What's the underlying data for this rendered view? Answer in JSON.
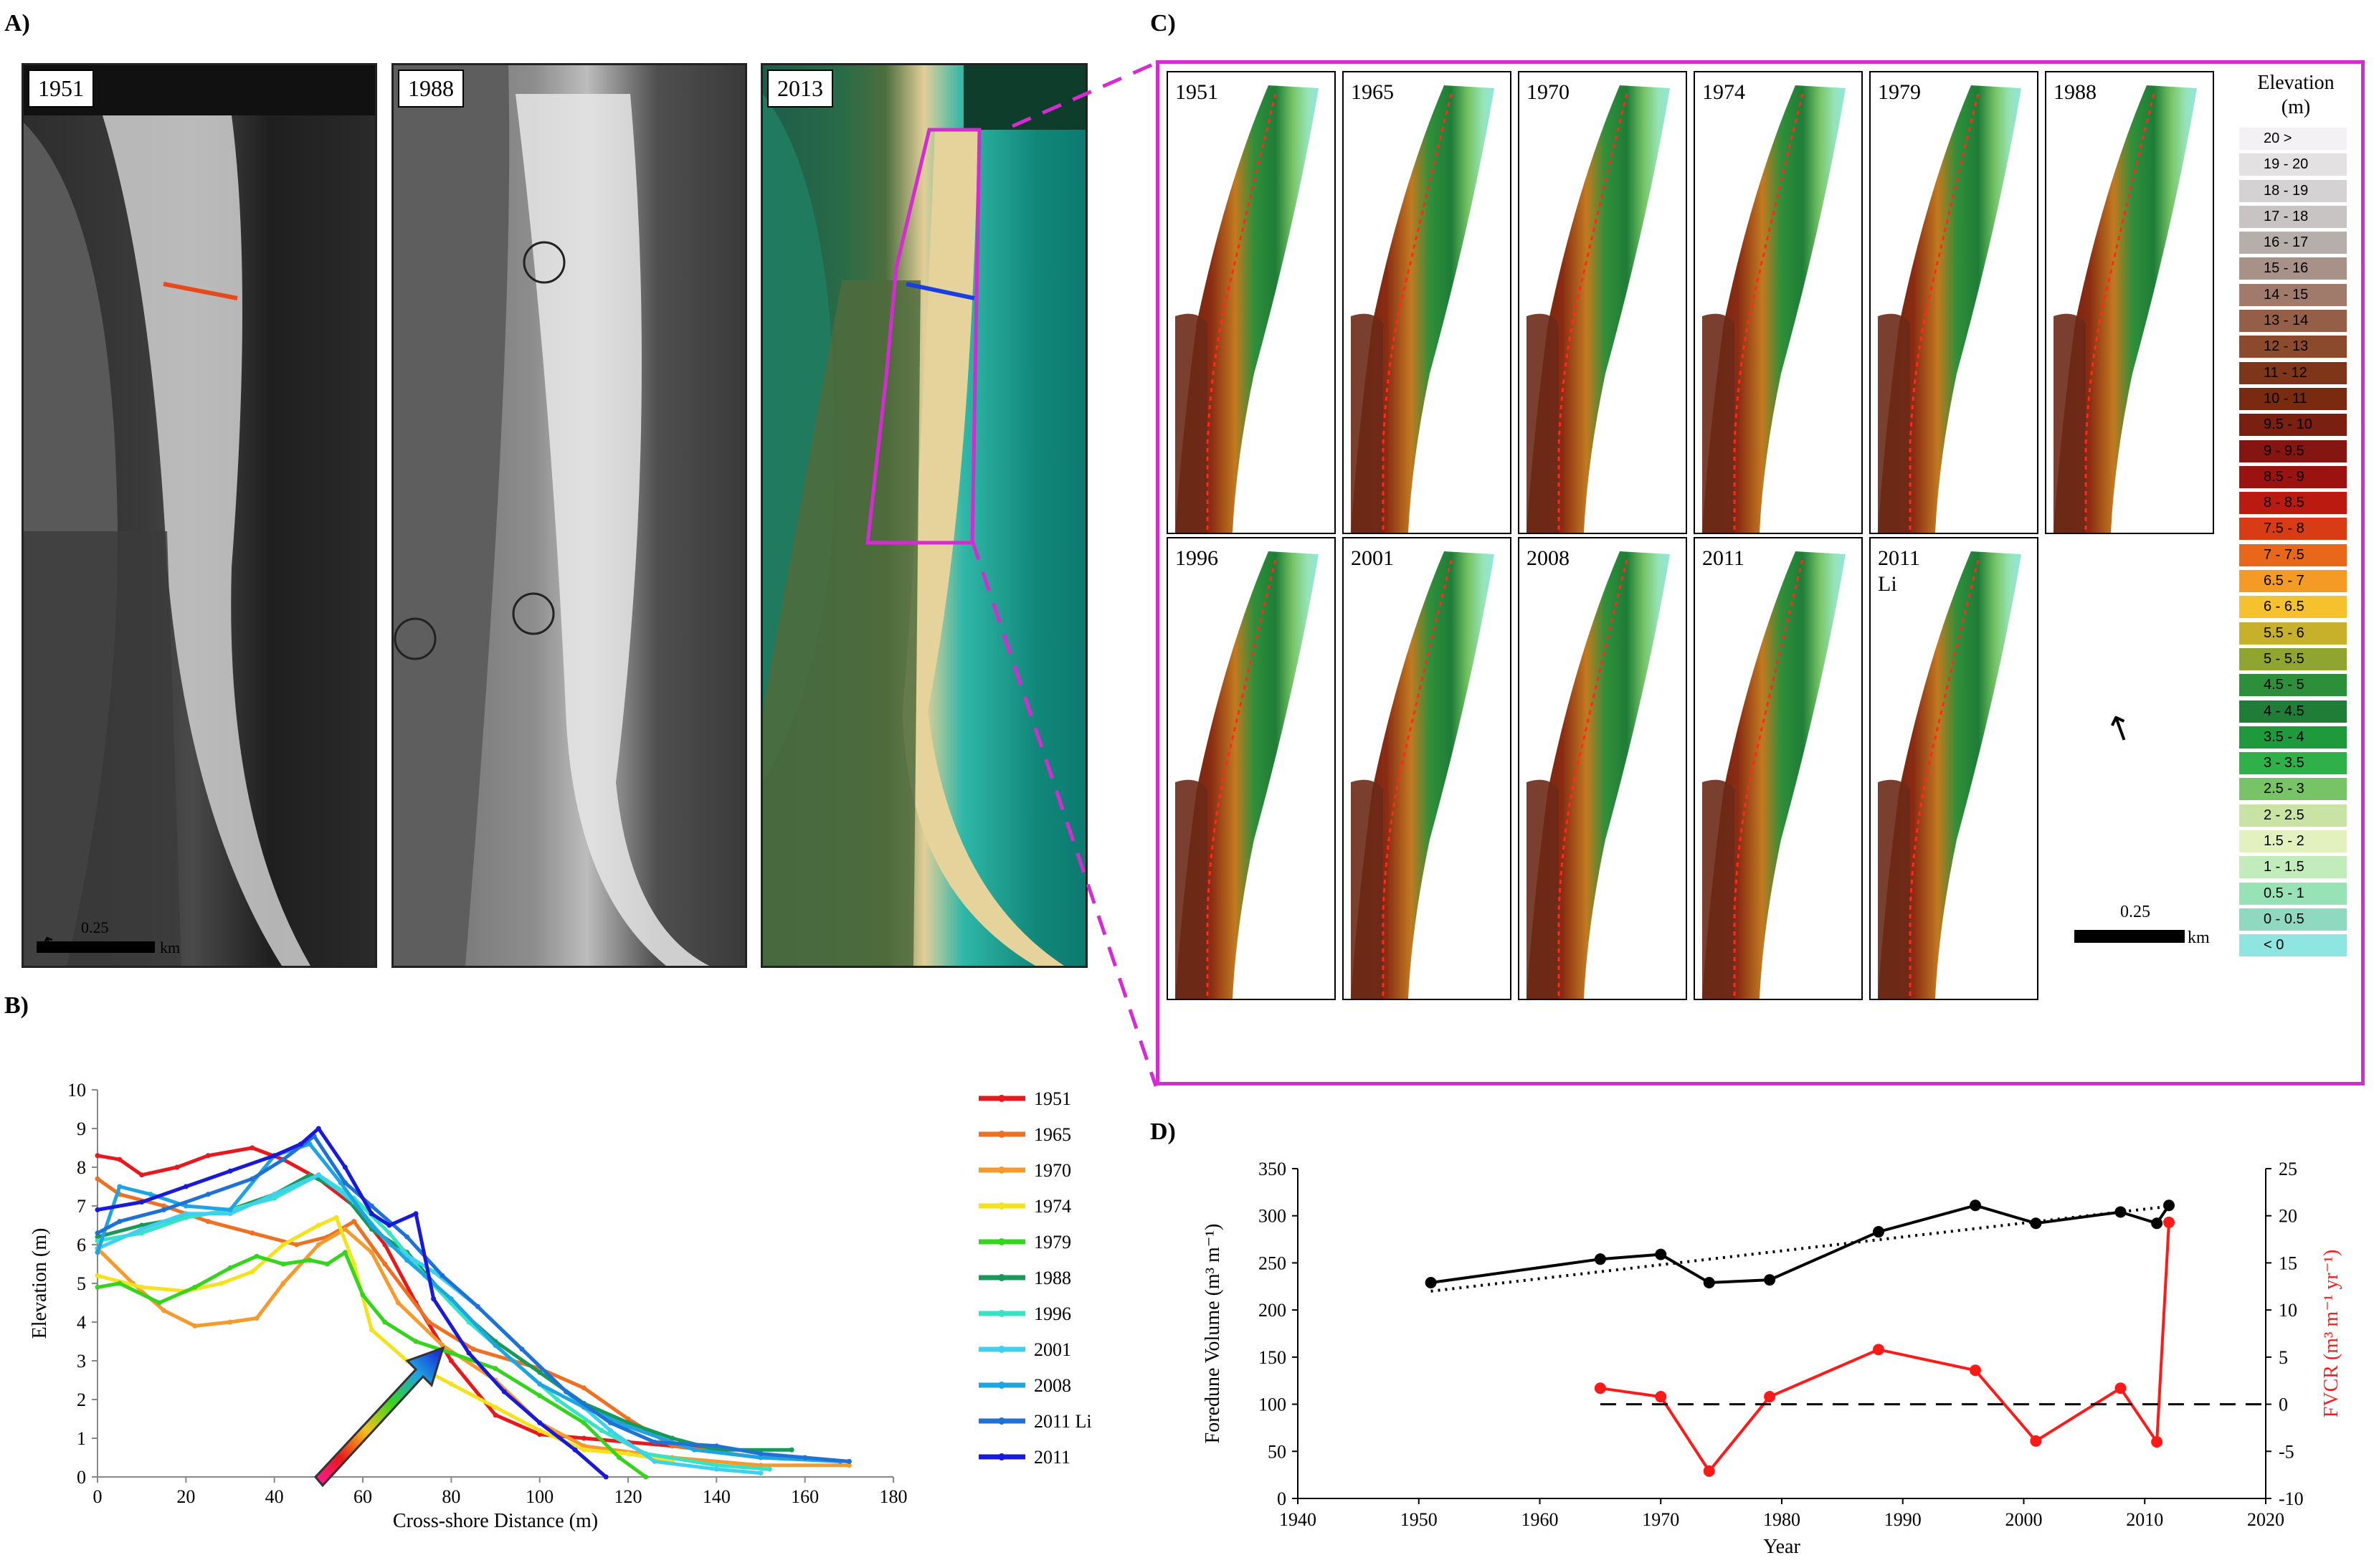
{
  "panels": {
    "a": "A)",
    "b": "B)",
    "c": "C)",
    "d": "D)"
  },
  "panel_a": {
    "photos": [
      {
        "year": "1951",
        "style": "bw"
      },
      {
        "year": "1988",
        "style": "bw2"
      },
      {
        "year": "2013",
        "style": "color"
      }
    ],
    "scale_value": "0.25",
    "scale_unit": "km"
  },
  "panel_c": {
    "frames": [
      "1951",
      "1965",
      "1970",
      "1974",
      "1979",
      "1988",
      "1996",
      "2001",
      "2008",
      "2011",
      "2011\nLi"
    ],
    "legend_title": "Elevation\n(m)",
    "legend": [
      {
        "label": "20 >",
        "color": "#f3f1f3"
      },
      {
        "label": "19 - 20",
        "color": "#e3e1e2"
      },
      {
        "label": "18 - 19",
        "color": "#d4d2d2"
      },
      {
        "label": "17 - 18",
        "color": "#c7c4c3"
      },
      {
        "label": "16 - 17",
        "color": "#b5aeab"
      },
      {
        "label": "15 - 16",
        "color": "#a89188"
      },
      {
        "label": "14 - 15",
        "color": "#a07b6c"
      },
      {
        "label": "13 - 14",
        "color": "#955f47"
      },
      {
        "label": "12 - 13",
        "color": "#8c4a2c"
      },
      {
        "label": "11 - 12",
        "color": "#7e3518"
      },
      {
        "label": "10 - 11",
        "color": "#7a2a0f"
      },
      {
        "label": "9.5 - 10",
        "color": "#7b1f10"
      },
      {
        "label": "9 - 9.5",
        "color": "#851510"
      },
      {
        "label": "8.5 - 9",
        "color": "#9c1210"
      },
      {
        "label": "8 - 8.5",
        "color": "#bb1a10"
      },
      {
        "label": "7.5 - 8",
        "color": "#d93c14"
      },
      {
        "label": "7 - 7.5",
        "color": "#e8671a"
      },
      {
        "label": "6.5 - 7",
        "color": "#f49a25"
      },
      {
        "label": "6 - 6.5",
        "color": "#f5c22d"
      },
      {
        "label": "5.5 - 6",
        "color": "#c7b12a"
      },
      {
        "label": "5 - 5.5",
        "color": "#8fa52f"
      },
      {
        "label": "4.5 - 5",
        "color": "#2e8f3a"
      },
      {
        "label": "4 - 4.5",
        "color": "#1f7d37"
      },
      {
        "label": "3.5 - 4",
        "color": "#1e9a3c"
      },
      {
        "label": "3 - 3.5",
        "color": "#2fb048"
      },
      {
        "label": "2.5 - 3",
        "color": "#76c466"
      },
      {
        "label": "2 - 2.5",
        "color": "#c8e3a4"
      },
      {
        "label": "1.5 - 2",
        "color": "#e2f1bd"
      },
      {
        "label": "1 - 1.5",
        "color": "#c3ecbd"
      },
      {
        "label": "0.5 - 1",
        "color": "#97e3b6"
      },
      {
        "label": "0 - 0.5",
        "color": "#8fd9c0"
      },
      {
        "label": "< 0",
        "color": "#8fe6e0"
      }
    ],
    "scale_value": "0.25",
    "scale_unit": "km"
  },
  "chart_data": [
    {
      "type": "line",
      "panel": "B",
      "xlabel": "Cross-shore Distance  (m)",
      "ylabel": "Elevation  (m)",
      "xlim": [
        0,
        180
      ],
      "ylim": [
        0,
        10
      ],
      "xticks": [
        0,
        20,
        40,
        60,
        80,
        100,
        120,
        140,
        160,
        180
      ],
      "yticks": [
        0,
        1,
        2,
        3,
        4,
        5,
        6,
        7,
        8,
        9,
        10
      ],
      "legend_position": "right",
      "series": [
        {
          "name": "1951",
          "color": "#e8191c",
          "points": [
            [
              0,
              8.3
            ],
            [
              5,
              8.2
            ],
            [
              10,
              7.8
            ],
            [
              18,
              8.0
            ],
            [
              25,
              8.3
            ],
            [
              35,
              8.5
            ],
            [
              42,
              8.2
            ],
            [
              50,
              7.7
            ],
            [
              58,
              7.0
            ],
            [
              65,
              6.0
            ],
            [
              72,
              4.5
            ],
            [
              80,
              3.0
            ],
            [
              90,
              1.6
            ],
            [
              100,
              1.1
            ],
            [
              110,
              1.0
            ],
            [
              120,
              0.9
            ],
            [
              130,
              0.8
            ],
            [
              140,
              0.7
            ]
          ]
        },
        {
          "name": "1965",
          "color": "#ee7023",
          "points": [
            [
              0,
              7.7
            ],
            [
              5,
              7.3
            ],
            [
              15,
              7.0
            ],
            [
              25,
              6.6
            ],
            [
              35,
              6.3
            ],
            [
              45,
              6.0
            ],
            [
              52,
              6.2
            ],
            [
              58,
              6.6
            ],
            [
              65,
              5.5
            ],
            [
              75,
              4.0
            ],
            [
              85,
              3.3
            ],
            [
              100,
              2.8
            ],
            [
              110,
              2.3
            ],
            [
              120,
              1.5
            ],
            [
              130,
              0.8
            ],
            [
              150,
              0.5
            ],
            [
              170,
              0.4
            ]
          ]
        },
        {
          "name": "1970",
          "color": "#f59a2c",
          "points": [
            [
              0,
              5.9
            ],
            [
              8,
              5.0
            ],
            [
              15,
              4.3
            ],
            [
              22,
              3.9
            ],
            [
              30,
              4.0
            ],
            [
              36,
              4.1
            ],
            [
              42,
              5.0
            ],
            [
              50,
              6.0
            ],
            [
              56,
              6.4
            ],
            [
              62,
              5.8
            ],
            [
              68,
              4.5
            ],
            [
              78,
              3.4
            ],
            [
              90,
              2.5
            ],
            [
              100,
              1.4
            ],
            [
              110,
              0.8
            ],
            [
              130,
              0.5
            ],
            [
              150,
              0.3
            ],
            [
              170,
              0.3
            ]
          ]
        },
        {
          "name": "1974",
          "color": "#f5e21c",
          "points": [
            [
              0,
              5.2
            ],
            [
              10,
              4.9
            ],
            [
              20,
              4.8
            ],
            [
              28,
              5.0
            ],
            [
              35,
              5.3
            ],
            [
              42,
              6.0
            ],
            [
              50,
              6.5
            ],
            [
              54,
              6.7
            ],
            [
              58,
              5.5
            ],
            [
              62,
              3.8
            ],
            [
              70,
              3.0
            ],
            [
              80,
              2.4
            ],
            [
              90,
              1.8
            ],
            [
              100,
              1.2
            ],
            [
              110,
              0.7
            ],
            [
              120,
              0.6
            ],
            [
              130,
              0.4
            ]
          ]
        },
        {
          "name": "1979",
          "color": "#35d41d",
          "points": [
            [
              0,
              4.9
            ],
            [
              5,
              5.0
            ],
            [
              14,
              4.5
            ],
            [
              22,
              4.9
            ],
            [
              30,
              5.4
            ],
            [
              36,
              5.7
            ],
            [
              42,
              5.5
            ],
            [
              48,
              5.6
            ],
            [
              52,
              5.5
            ],
            [
              56,
              5.8
            ],
            [
              60,
              4.7
            ],
            [
              65,
              4.0
            ],
            [
              72,
              3.5
            ],
            [
              80,
              3.2
            ],
            [
              90,
              2.8
            ],
            [
              100,
              2.1
            ],
            [
              110,
              1.4
            ],
            [
              118,
              0.5
            ],
            [
              124,
              0.0
            ]
          ]
        },
        {
          "name": "1988",
          "color": "#17995a",
          "points": [
            [
              0,
              6.2
            ],
            [
              10,
              6.5
            ],
            [
              20,
              6.7
            ],
            [
              30,
              6.9
            ],
            [
              40,
              7.3
            ],
            [
              48,
              7.8
            ],
            [
              55,
              7.4
            ],
            [
              62,
              6.4
            ],
            [
              70,
              5.8
            ],
            [
              80,
              4.5
            ],
            [
              90,
              3.5
            ],
            [
              100,
              2.7
            ],
            [
              110,
              1.9
            ],
            [
              120,
              1.4
            ],
            [
              130,
              1.0
            ],
            [
              140,
              0.7
            ],
            [
              157,
              0.7
            ]
          ]
        },
        {
          "name": "1996",
          "color": "#38e3c5",
          "points": [
            [
              0,
              6.1
            ],
            [
              10,
              6.3
            ],
            [
              20,
              6.7
            ],
            [
              30,
              6.9
            ],
            [
              40,
              7.2
            ],
            [
              50,
              7.8
            ],
            [
              58,
              7.2
            ],
            [
              66,
              6.3
            ],
            [
              74,
              5.2
            ],
            [
              84,
              4.0
            ],
            [
              94,
              3.0
            ],
            [
              104,
              2.0
            ],
            [
              114,
              1.2
            ],
            [
              124,
              0.6
            ],
            [
              140,
              0.3
            ],
            [
              152,
              0.2
            ]
          ]
        },
        {
          "name": "2001",
          "color": "#3fd0f0",
          "points": [
            [
              0,
              5.9
            ],
            [
              10,
              6.4
            ],
            [
              20,
              6.8
            ],
            [
              30,
              6.8
            ],
            [
              40,
              7.3
            ],
            [
              50,
              7.8
            ],
            [
              58,
              7.1
            ],
            [
              66,
              6.0
            ],
            [
              76,
              5.3
            ],
            [
              86,
              4.4
            ],
            [
              96,
              3.3
            ],
            [
              106,
              2.2
            ],
            [
              116,
              1.2
            ],
            [
              126,
              0.4
            ],
            [
              140,
              0.2
            ],
            [
              150,
              0.1
            ]
          ]
        },
        {
          "name": "2008",
          "color": "#1ea5e1",
          "points": [
            [
              0,
              5.8
            ],
            [
              5,
              7.5
            ],
            [
              12,
              7.3
            ],
            [
              20,
              7.0
            ],
            [
              30,
              6.9
            ],
            [
              40,
              8.3
            ],
            [
              48,
              8.6
            ],
            [
              55,
              7.6
            ],
            [
              62,
              6.5
            ],
            [
              70,
              5.6
            ],
            [
              80,
              4.6
            ],
            [
              90,
              3.4
            ],
            [
              100,
              2.4
            ],
            [
              110,
              1.8
            ],
            [
              120,
              1.3
            ],
            [
              135,
              0.7
            ],
            [
              150,
              0.5
            ],
            [
              168,
              0.4
            ]
          ]
        },
        {
          "name": "2011 Li",
          "color": "#1f72d5",
          "points": [
            [
              0,
              6.3
            ],
            [
              5,
              6.6
            ],
            [
              15,
              6.9
            ],
            [
              25,
              7.3
            ],
            [
              35,
              7.7
            ],
            [
              42,
              8.2
            ],
            [
              49,
              8.8
            ],
            [
              56,
              7.6
            ],
            [
              62,
              7.0
            ],
            [
              70,
              6.2
            ],
            [
              78,
              5.2
            ],
            [
              86,
              4.4
            ],
            [
              96,
              3.3
            ],
            [
              106,
              2.2
            ],
            [
              116,
              1.4
            ],
            [
              126,
              0.9
            ],
            [
              140,
              0.8
            ],
            [
              150,
              0.6
            ],
            [
              160,
              0.5
            ],
            [
              170,
              0.4
            ]
          ]
        },
        {
          "name": "2011",
          "color": "#1919d8",
          "points": [
            [
              0,
              6.9
            ],
            [
              10,
              7.1
            ],
            [
              20,
              7.5
            ],
            [
              30,
              7.9
            ],
            [
              40,
              8.3
            ],
            [
              46,
              8.6
            ],
            [
              50,
              9.0
            ],
            [
              56,
              8.0
            ],
            [
              62,
              6.8
            ],
            [
              66,
              6.5
            ],
            [
              72,
              6.8
            ],
            [
              76,
              4.6
            ],
            [
              84,
              3.2
            ],
            [
              92,
              2.2
            ],
            [
              100,
              1.4
            ],
            [
              108,
              0.7
            ],
            [
              115,
              0.0
            ]
          ]
        }
      ]
    },
    {
      "type": "line",
      "panel": "D",
      "xlabel": "Year",
      "ylabel": "Foredune Volume  (m³ m⁻¹)",
      "y2label": "FVCR  (m³ m⁻¹ yr⁻¹)",
      "xlim": [
        1940,
        2020
      ],
      "ylim": [
        0,
        350
      ],
      "y2lim": [
        -10,
        25
      ],
      "xticks": [
        1940,
        1950,
        1960,
        1970,
        1980,
        1990,
        2000,
        2010,
        2020
      ],
      "yticks": [
        0,
        50,
        100,
        150,
        200,
        250,
        300,
        350
      ],
      "y2ticks": [
        -10,
        -5,
        0,
        5,
        10,
        15,
        20,
        25
      ],
      "series": [
        {
          "name": "Foredune Volume",
          "axis": "left",
          "color": "#000000",
          "x": [
            1951,
            1965,
            1970,
            1974,
            1979,
            1988,
            1996,
            2001,
            2008,
            2011,
            2012
          ],
          "y": [
            229,
            254,
            259,
            229,
            232,
            283,
            311,
            292,
            304,
            292,
            311
          ]
        },
        {
          "name": "FVCR",
          "axis": "right",
          "color": "#ff1a1a",
          "x": [
            1965,
            1970,
            1974,
            1979,
            1988,
            1996,
            2001,
            2008,
            2011,
            2012
          ],
          "y": [
            1.7,
            0.8,
            -7.1,
            0.8,
            5.8,
            3.6,
            -3.9,
            1.7,
            -4.0,
            19.3
          ]
        },
        {
          "name": "trend",
          "axis": "left",
          "style": "dotted",
          "color": "#000000",
          "x": [
            1951,
            2012
          ],
          "y": [
            220,
            310
          ]
        },
        {
          "name": "zero",
          "axis": "right",
          "style": "dashed",
          "color": "#000000",
          "x": [
            1965,
            2020
          ],
          "y": [
            0,
            0
          ]
        }
      ]
    }
  ]
}
